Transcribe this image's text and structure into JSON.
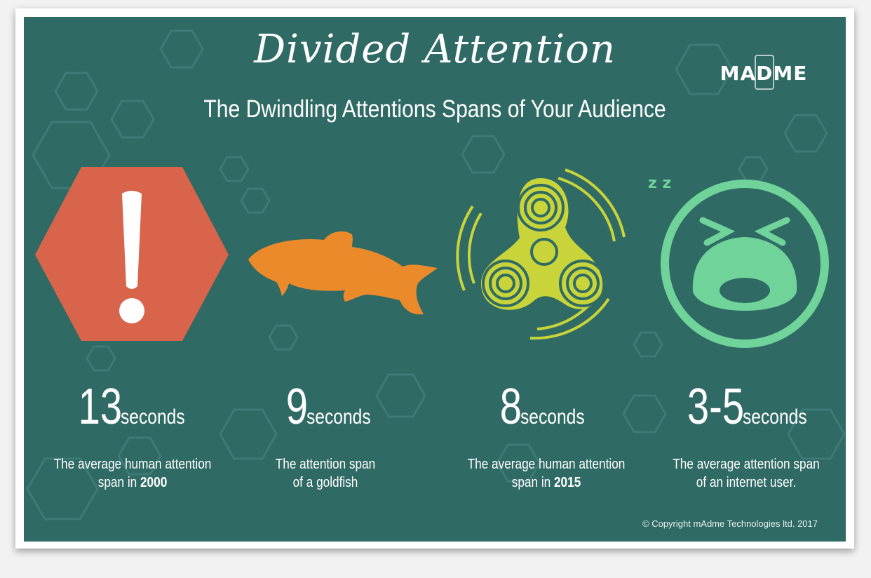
{
  "title": "Divided Attention",
  "subtitle": "The Dwindling Attentions Spans of Your Audience",
  "logo": "MADME",
  "stats": [
    {
      "number": "13",
      "unit": "seconds",
      "desc_pre": "The average human attention span in ",
      "desc_bold": "2000",
      "desc_post": ""
    },
    {
      "number": "9",
      "unit": "seconds",
      "desc_pre": "The attention span of a goldfish",
      "desc_bold": "",
      "desc_post": ""
    },
    {
      "number": "8",
      "unit": "seconds",
      "desc_pre": "The average human attention span in ",
      "desc_bold": "2015",
      "desc_post": ""
    },
    {
      "number": "3-5",
      "unit": "seconds",
      "desc_pre": "The average attention span of an internet user.",
      "desc_bold": "",
      "desc_post": ""
    }
  ],
  "sleep_text": "z z",
  "copyright": "© Copyright mAdme Technologies ltd. 2017",
  "colors": {
    "background": "#2f6a65",
    "warning": "#d9644c",
    "goldfish": "#eb8a2a",
    "spinner": "#c8d43a",
    "face": "#6fd39a"
  }
}
